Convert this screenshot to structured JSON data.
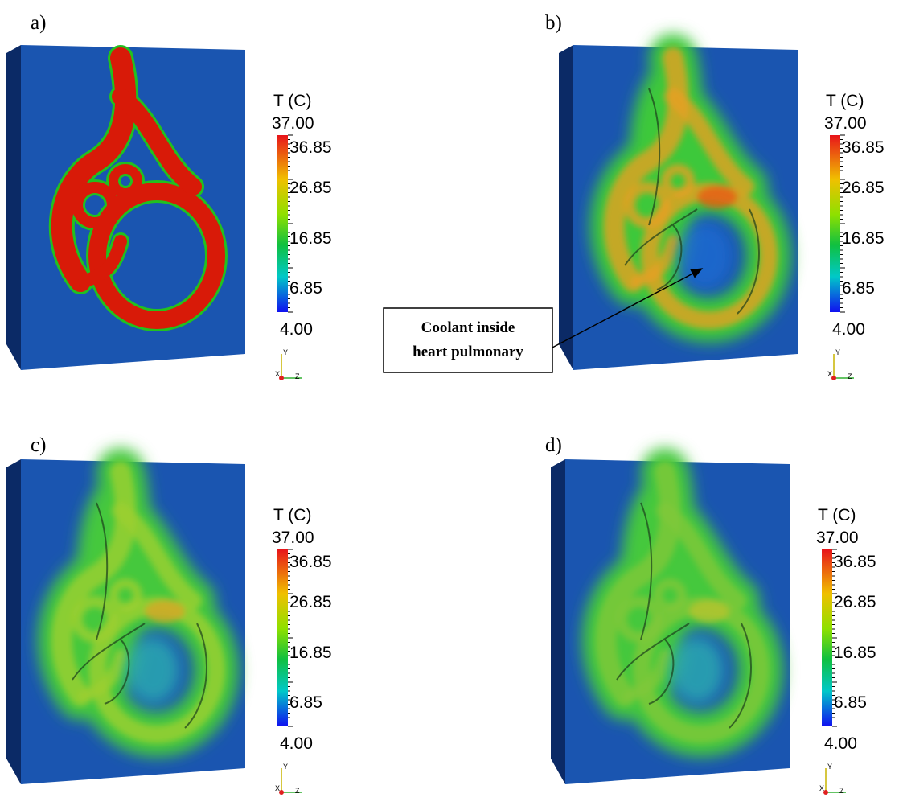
{
  "panels": [
    {
      "label": "a)",
      "legend": {
        "title": "T (C)",
        "max": "37.00",
        "ticks": [
          "36.85",
          "26.85",
          "16.85",
          "6.85"
        ],
        "min": "4.00"
      },
      "axes": {
        "y": "Y",
        "x": "X",
        "z": "Z"
      }
    },
    {
      "label": "b)",
      "legend": {
        "title": "T (C)",
        "max": "37.00",
        "ticks": [
          "36.85",
          "26.85",
          "16.85",
          "6.85"
        ],
        "min": "4.00"
      },
      "axes": {
        "y": "Y",
        "x": "X",
        "z": "Z"
      }
    },
    {
      "label": "c)",
      "legend": {
        "title": "T (C)",
        "max": "37.00",
        "ticks": [
          "36.85",
          "26.85",
          "16.85",
          "6.85"
        ],
        "min": "4.00"
      },
      "axes": {
        "y": "Y",
        "x": "X",
        "z": "Z"
      }
    },
    {
      "label": "d)",
      "legend": {
        "title": "T (C)",
        "max": "37.00",
        "ticks": [
          "36.85",
          "26.85",
          "16.85",
          "6.85"
        ],
        "min": "4.00"
      },
      "axes": {
        "y": "Y",
        "x": "X",
        "z": "Z"
      }
    }
  ],
  "annotation": {
    "lines": [
      "Coolant inside",
      "heart pulmonary"
    ]
  }
}
